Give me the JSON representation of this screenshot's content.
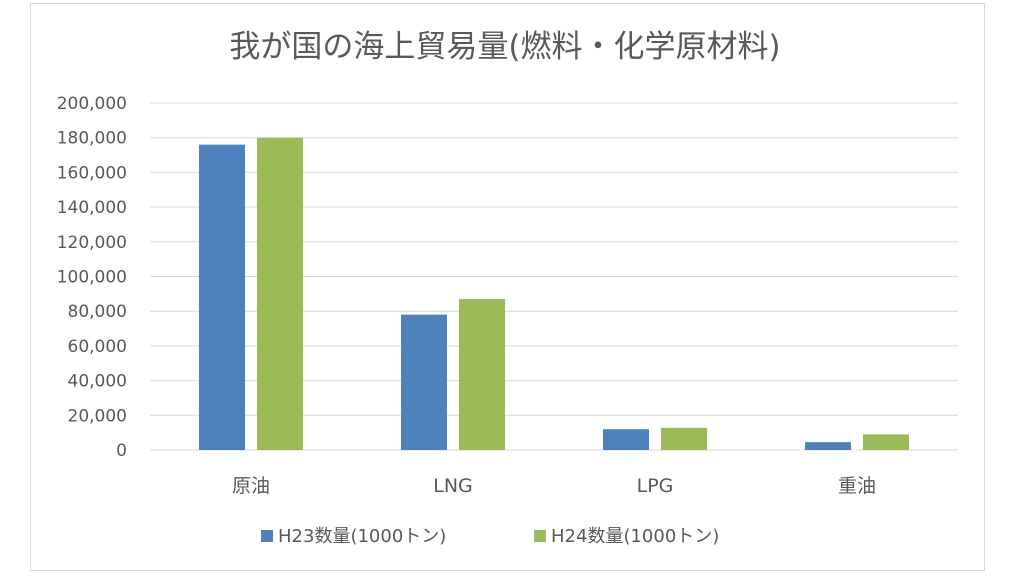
{
  "chart_data": {
    "type": "bar",
    "title": "我が国の海上貿易量(燃料・化学原材料)",
    "categories": [
      "原油",
      "LNG",
      "LPG",
      "重油"
    ],
    "series": [
      {
        "name": "H23数量(1000トン)",
        "values": [
          176000,
          78000,
          12000,
          4500
        ],
        "color": "#4f81bd"
      },
      {
        "name": "H24数量(1000トン)",
        "values": [
          180000,
          87000,
          12800,
          9000
        ],
        "color": "#9bbb59"
      }
    ],
    "ylim": [
      0,
      200000
    ],
    "yticks": [
      "0",
      "20,000",
      "40,000",
      "60,000",
      "80,000",
      "100,000",
      "120,000",
      "140,000",
      "160,000",
      "180,000",
      "200,000"
    ],
    "grid": true,
    "legend_position": "bottom"
  }
}
